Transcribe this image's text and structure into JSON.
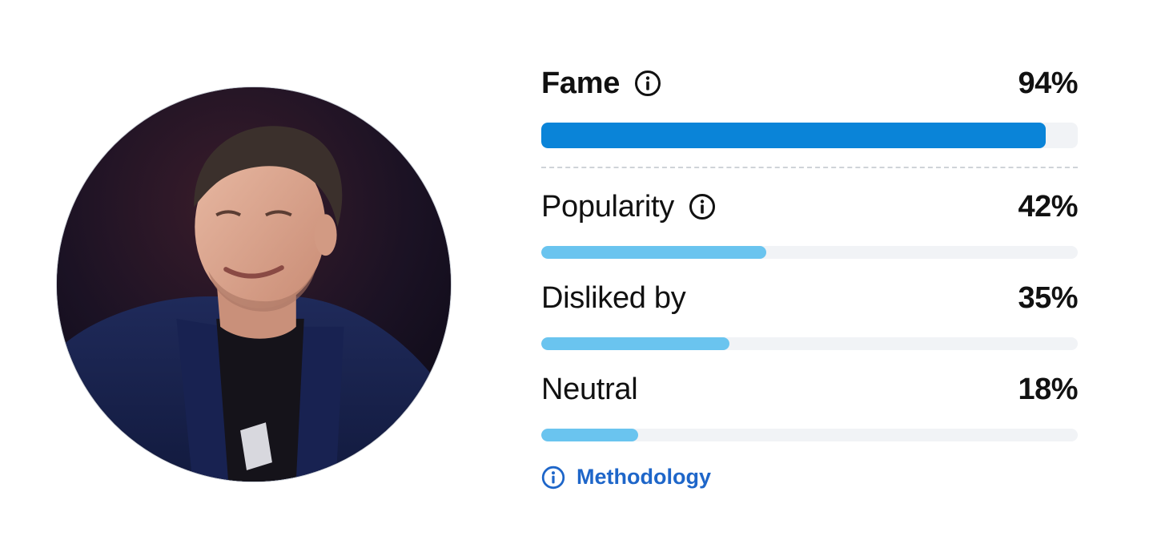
{
  "avatar": {
    "alt_icon": "person-portrait"
  },
  "metrics": [
    {
      "label": "Fame",
      "value": "94%",
      "fraction": 0.94,
      "emphasis": true,
      "info": true,
      "bar_color": "#0a84d8"
    },
    {
      "label": "Popularity",
      "value": "42%",
      "fraction": 0.42,
      "emphasis": false,
      "info": true,
      "bar_color": "#6ac4ef"
    },
    {
      "label": "Disliked by",
      "value": "35%",
      "fraction": 0.35,
      "emphasis": false,
      "info": false,
      "bar_color": "#6ac4ef"
    },
    {
      "label": "Neutral",
      "value": "18%",
      "fraction": 0.18,
      "emphasis": false,
      "info": false,
      "bar_color": "#6ac4ef"
    }
  ],
  "methodology": {
    "label": "Methodology",
    "color": "#1e66c9"
  },
  "colors": {
    "track": "#f1f3f6",
    "text": "#111111"
  }
}
